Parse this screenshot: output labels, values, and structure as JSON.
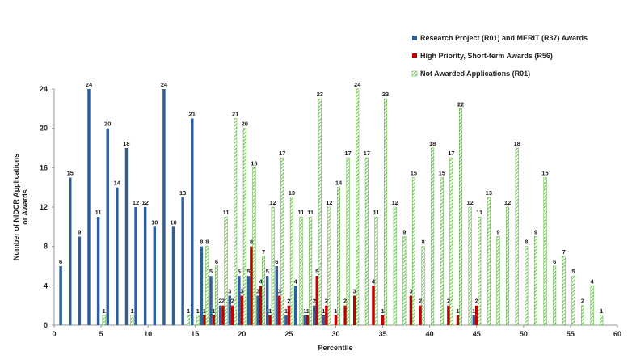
{
  "chart_data": {
    "type": "bar",
    "x_label": "Percentile",
    "y_label": [
      "Number of NIDCR Applications",
      "or Awards"
    ],
    "x": [
      1,
      2,
      3,
      4,
      5,
      6,
      7,
      8,
      9,
      10,
      11,
      12,
      13,
      14,
      15,
      16,
      17,
      18,
      19,
      20,
      21,
      22,
      23,
      24,
      25,
      26,
      27,
      28,
      29,
      30,
      31,
      32,
      33,
      34,
      35,
      36,
      37,
      38,
      39,
      40,
      41,
      42,
      43,
      44,
      45,
      46,
      47,
      48,
      49,
      50,
      51,
      52,
      53,
      54,
      55,
      56,
      57,
      58
    ],
    "series": [
      {
        "name": "Research Project (R01) and MERIT (R37) Awards",
        "color": "#2e5e9c",
        "pattern": "solid",
        "offset": -0.3,
        "values": [
          6,
          15,
          9,
          24,
          11,
          20,
          14,
          18,
          12,
          12,
          10,
          24,
          10,
          13,
          21,
          8,
          5,
          2,
          3,
          5,
          5,
          3,
          5,
          6,
          1,
          4,
          1,
          2,
          1,
          null,
          null,
          null,
          null,
          null,
          null,
          null,
          null,
          null,
          null,
          null,
          null,
          null,
          null,
          null,
          1,
          null,
          null,
          null,
          null,
          null,
          null,
          null,
          null,
          null,
          null,
          null,
          null,
          null
        ]
      },
      {
        "name": "High Priority, Short-term Awards (R56)",
        "color": "#c00000",
        "pattern": "solid",
        "offset": 0,
        "values": [
          null,
          null,
          null,
          null,
          null,
          null,
          null,
          null,
          null,
          null,
          null,
          null,
          null,
          null,
          null,
          1,
          1,
          2,
          2,
          3,
          8,
          4,
          1,
          3,
          2,
          null,
          1,
          5,
          2,
          1,
          2,
          3,
          null,
          4,
          1,
          null,
          null,
          3,
          2,
          null,
          null,
          2,
          1,
          null,
          2,
          null,
          null,
          null,
          null,
          null,
          null,
          null,
          null,
          null,
          null,
          null,
          null,
          null
        ]
      },
      {
        "name": "Not Awarded Applications (R01)",
        "color": "#4caf2a",
        "pattern": "hatch",
        "offset": 0.3,
        "values": [
          null,
          null,
          null,
          null,
          1,
          null,
          null,
          1,
          null,
          null,
          null,
          null,
          null,
          1,
          1,
          8,
          6,
          11,
          21,
          20,
          16,
          7,
          12,
          17,
          13,
          11,
          11,
          23,
          12,
          14,
          17,
          24,
          17,
          11,
          23,
          12,
          9,
          15,
          8,
          18,
          15,
          17,
          22,
          12,
          11,
          13,
          9,
          12,
          18,
          8,
          9,
          15,
          6,
          7,
          5,
          2,
          4,
          1
        ]
      }
    ],
    "xlim": [
      0,
      60
    ],
    "xticks": [
      0,
      5,
      10,
      15,
      20,
      25,
      30,
      35,
      40,
      45,
      50,
      55,
      60
    ],
    "ylim": [
      0,
      24
    ],
    "yticks": [
      0,
      4,
      8,
      12,
      16,
      20,
      24
    ],
    "legend": "top-right"
  }
}
